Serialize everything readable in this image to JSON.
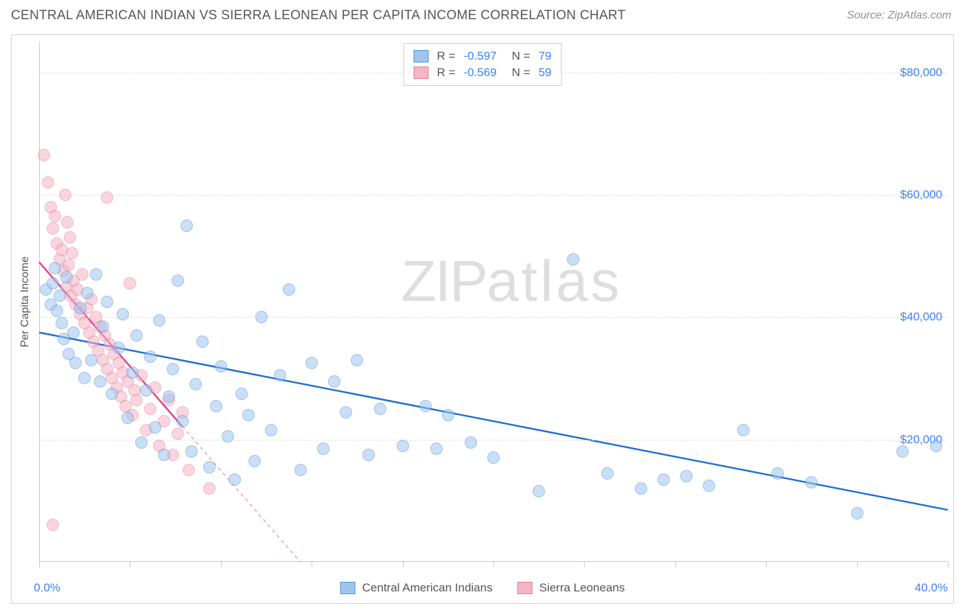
{
  "header": {
    "title": "CENTRAL AMERICAN INDIAN VS SIERRA LEONEAN PER CAPITA INCOME CORRELATION CHART",
    "source": "Source: ZipAtlas.com"
  },
  "watermark": {
    "left": "ZIP",
    "right": "atlas"
  },
  "chart": {
    "type": "scatter",
    "ylabel": "Per Capita Income",
    "axis_text_color": "#3b82f6",
    "label_text_color": "#555555",
    "grid_color": "#dcdcdc",
    "border_color": "#c8c8c8",
    "background_color": "#ffffff",
    "xlim": [
      0,
      40
    ],
    "ylim": [
      0,
      85000
    ],
    "xaxis_min_label": "0.0%",
    "xaxis_max_label": "40.0%",
    "xtick_positions": [
      0,
      4,
      8,
      12,
      16,
      20,
      24,
      28,
      32,
      36,
      40
    ],
    "ytick_positions": [
      20000,
      40000,
      60000,
      80000
    ],
    "ytick_labels": [
      "$20,000",
      "$40,000",
      "$60,000",
      "$80,000"
    ],
    "marker_radius": 9,
    "marker_opacity": 0.55,
    "series": [
      {
        "name": "Central American Indians",
        "fill_color": "#9fc5ee",
        "stroke_color": "#4a90d9",
        "trend_color": "#1f6fd0",
        "trend_width": 2.5,
        "trend": {
          "x1": 0,
          "y1": 37500,
          "x2": 40,
          "y2": 8500,
          "dashed_after_x": null
        },
        "points": [
          [
            0.3,
            44500
          ],
          [
            0.5,
            42000
          ],
          [
            0.6,
            45500
          ],
          [
            0.7,
            48000
          ],
          [
            0.8,
            41000
          ],
          [
            0.9,
            43500
          ],
          [
            1.0,
            39000
          ],
          [
            1.1,
            36500
          ],
          [
            1.2,
            46500
          ],
          [
            1.3,
            34000
          ],
          [
            1.5,
            37500
          ],
          [
            1.6,
            32500
          ],
          [
            1.8,
            41500
          ],
          [
            2.0,
            30000
          ],
          [
            2.1,
            44000
          ],
          [
            2.3,
            33000
          ],
          [
            2.5,
            47000
          ],
          [
            2.7,
            29500
          ],
          [
            2.8,
            38500
          ],
          [
            3.0,
            42500
          ],
          [
            3.2,
            27500
          ],
          [
            3.5,
            35000
          ],
          [
            3.7,
            40500
          ],
          [
            3.9,
            23500
          ],
          [
            4.1,
            31000
          ],
          [
            4.3,
            37000
          ],
          [
            4.5,
            19500
          ],
          [
            4.7,
            28000
          ],
          [
            4.9,
            33500
          ],
          [
            5.1,
            22000
          ],
          [
            5.3,
            39500
          ],
          [
            5.5,
            17500
          ],
          [
            5.7,
            27000
          ],
          [
            5.9,
            31500
          ],
          [
            6.1,
            46000
          ],
          [
            6.3,
            23000
          ],
          [
            6.5,
            55000
          ],
          [
            6.7,
            18000
          ],
          [
            6.9,
            29000
          ],
          [
            7.2,
            36000
          ],
          [
            7.5,
            15500
          ],
          [
            7.8,
            25500
          ],
          [
            8.0,
            32000
          ],
          [
            8.3,
            20500
          ],
          [
            8.6,
            13500
          ],
          [
            8.9,
            27500
          ],
          [
            9.2,
            24000
          ],
          [
            9.5,
            16500
          ],
          [
            9.8,
            40000
          ],
          [
            10.2,
            21500
          ],
          [
            10.6,
            30500
          ],
          [
            11.0,
            44500
          ],
          [
            11.5,
            15000
          ],
          [
            12.0,
            32500
          ],
          [
            12.5,
            18500
          ],
          [
            13.0,
            29500
          ],
          [
            13.5,
            24500
          ],
          [
            14.0,
            33000
          ],
          [
            14.5,
            17500
          ],
          [
            15.0,
            25000
          ],
          [
            16.0,
            19000
          ],
          [
            17.0,
            25500
          ],
          [
            17.5,
            18500
          ],
          [
            18.0,
            24000
          ],
          [
            19.0,
            19500
          ],
          [
            20.0,
            17000
          ],
          [
            22.0,
            11500
          ],
          [
            23.5,
            49500
          ],
          [
            25.0,
            14500
          ],
          [
            26.5,
            12000
          ],
          [
            27.5,
            13500
          ],
          [
            28.5,
            14000
          ],
          [
            29.5,
            12500
          ],
          [
            31.0,
            21500
          ],
          [
            32.5,
            14500
          ],
          [
            34.0,
            13000
          ],
          [
            36.0,
            8000
          ],
          [
            38.0,
            18000
          ],
          [
            39.5,
            19000
          ]
        ]
      },
      {
        "name": "Sierra Leoneans",
        "fill_color": "#f5b5c4",
        "stroke_color": "#e6799a",
        "trend_color": "#e83e8c",
        "trend_width": 2.5,
        "trend": {
          "x1": 0,
          "y1": 49000,
          "x2": 11.5,
          "y2": 0,
          "dashed_after_x": 6.3
        },
        "points": [
          [
            0.2,
            66500
          ],
          [
            0.4,
            62000
          ],
          [
            0.5,
            58000
          ],
          [
            0.6,
            54500
          ],
          [
            0.7,
            56500
          ],
          [
            0.8,
            52000
          ],
          [
            0.9,
            49500
          ],
          [
            1.0,
            51000
          ],
          [
            1.1,
            47500
          ],
          [
            1.15,
            60000
          ],
          [
            1.2,
            45000
          ],
          [
            1.3,
            48500
          ],
          [
            1.4,
            43500
          ],
          [
            1.5,
            46000
          ],
          [
            1.6,
            42000
          ],
          [
            1.7,
            44500
          ],
          [
            1.8,
            40500
          ],
          [
            1.9,
            47000
          ],
          [
            2.0,
            39000
          ],
          [
            2.1,
            41500
          ],
          [
            2.2,
            37500
          ],
          [
            2.3,
            43000
          ],
          [
            2.4,
            36000
          ],
          [
            2.5,
            40000
          ],
          [
            2.6,
            34500
          ],
          [
            2.7,
            38500
          ],
          [
            2.8,
            33000
          ],
          [
            2.9,
            37000
          ],
          [
            3.0,
            31500
          ],
          [
            3.1,
            35500
          ],
          [
            3.2,
            30000
          ],
          [
            3.3,
            34000
          ],
          [
            3.4,
            28500
          ],
          [
            3.5,
            32500
          ],
          [
            3.6,
            27000
          ],
          [
            3.7,
            31000
          ],
          [
            3.8,
            25500
          ],
          [
            3.9,
            29500
          ],
          [
            4.0,
            45500
          ],
          [
            4.1,
            24000
          ],
          [
            4.2,
            28000
          ],
          [
            4.3,
            26500
          ],
          [
            4.5,
            30500
          ],
          [
            4.7,
            21500
          ],
          [
            4.9,
            25000
          ],
          [
            5.1,
            28500
          ],
          [
            5.3,
            19000
          ],
          [
            5.5,
            23000
          ],
          [
            5.7,
            26500
          ],
          [
            5.9,
            17500
          ],
          [
            6.1,
            21000
          ],
          [
            6.3,
            24500
          ],
          [
            6.6,
            15000
          ],
          [
            0.6,
            6000
          ],
          [
            3.0,
            59500
          ],
          [
            1.25,
            55500
          ],
          [
            1.35,
            53000
          ],
          [
            1.45,
            50500
          ],
          [
            7.5,
            12000
          ]
        ]
      }
    ]
  },
  "stats_box": {
    "rows": [
      {
        "swatch_fill": "#9fc5ee",
        "swatch_stroke": "#4a90d9",
        "r_label": "R =",
        "r_value": "-0.597",
        "n_label": "N =",
        "n_value": "79"
      },
      {
        "swatch_fill": "#f5b5c4",
        "swatch_stroke": "#e6799a",
        "r_label": "R =",
        "r_value": "-0.569",
        "n_label": "N =",
        "n_value": "59"
      }
    ]
  },
  "bottom_legend": {
    "items": [
      {
        "swatch_fill": "#9fc5ee",
        "swatch_stroke": "#4a90d9",
        "label": "Central American Indians"
      },
      {
        "swatch_fill": "#f5b5c4",
        "swatch_stroke": "#e6799a",
        "label": "Sierra Leoneans"
      }
    ]
  }
}
